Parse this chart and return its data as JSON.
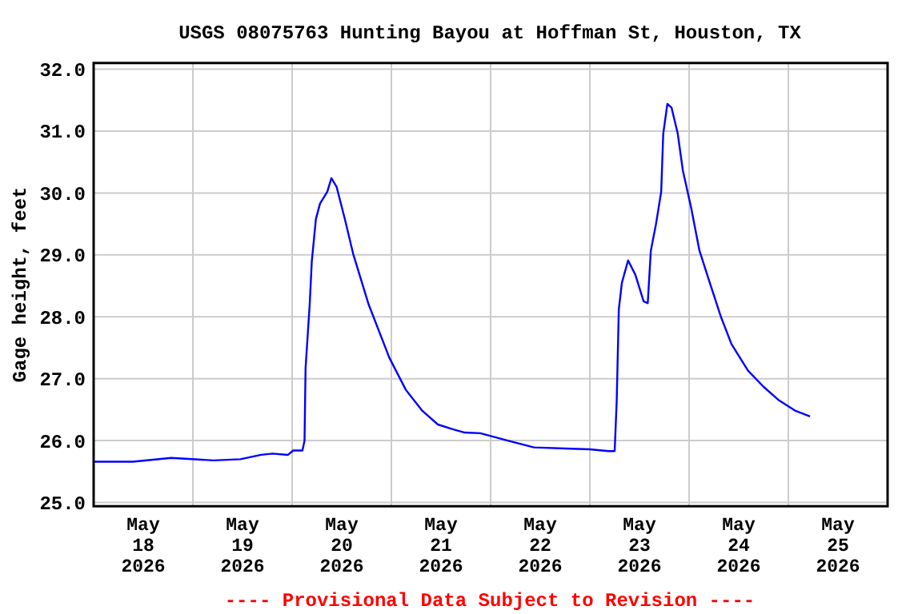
{
  "chart_data": {
    "type": "line",
    "title": "USGS 08075763 Hunting Bayou at Hoffman St, Houston, TX",
    "ylabel": "Gage height, feet",
    "annotations": [
      "---- Provisional Data Subject to Revision ----"
    ],
    "x": [
      "2026-05-18T00:00",
      "2026-05-18T09:30",
      "2026-05-18T18:45",
      "2026-05-19T05:00",
      "2026-05-19T11:30",
      "2026-05-19T16:30",
      "2026-05-19T19:15",
      "2026-05-19T23:00",
      "2026-05-20T00:15",
      "2026-05-20T02:30",
      "2026-05-20T03:00",
      "2026-05-20T03:15",
      "2026-05-20T04:15",
      "2026-05-20T04:45",
      "2026-05-20T05:45",
      "2026-05-20T06:45",
      "2026-05-20T08:30",
      "2026-05-20T09:30",
      "2026-05-20T10:45",
      "2026-05-20T12:45",
      "2026-05-20T14:45",
      "2026-05-20T18:30",
      "2026-05-20T23:30",
      "2026-05-21T03:30",
      "2026-05-21T07:30",
      "2026-05-21T11:15",
      "2026-05-21T15:00",
      "2026-05-21T17:45",
      "2026-05-21T21:30",
      "2026-05-22T05:15",
      "2026-05-22T10:30",
      "2026-05-22T19:30",
      "2026-05-23T00:00",
      "2026-05-23T04:30",
      "2026-05-23T06:00",
      "2026-05-23T06:30",
      "2026-05-23T07:00",
      "2026-05-23T07:45",
      "2026-05-23T09:15",
      "2026-05-23T11:00",
      "2026-05-23T13:00",
      "2026-05-23T14:00",
      "2026-05-23T14:45",
      "2026-05-23T16:00",
      "2026-05-23T17:15",
      "2026-05-23T17:45",
      "2026-05-23T18:45",
      "2026-05-23T19:45",
      "2026-05-23T21:15",
      "2026-05-23T22:30",
      "2026-05-24T00:30",
      "2026-05-24T02:30",
      "2026-05-24T05:00",
      "2026-05-24T07:45",
      "2026-05-24T10:15",
      "2026-05-24T14:15",
      "2026-05-24T18:00",
      "2026-05-24T21:45",
      "2026-05-25T01:45",
      "2026-05-25T05:15"
    ],
    "series": [
      {
        "color": "#0000ff",
        "values": [
          25.66,
          25.66,
          25.72,
          25.68,
          25.7,
          25.77,
          25.79,
          25.77,
          25.84,
          25.84,
          26.0,
          27.17,
          28.2,
          28.89,
          29.58,
          29.83,
          30.02,
          30.24,
          30.1,
          29.58,
          29.02,
          28.2,
          27.34,
          26.82,
          26.48,
          26.26,
          26.18,
          26.13,
          26.12,
          25.98,
          25.89,
          25.87,
          25.86,
          25.83,
          25.83,
          26.65,
          28.12,
          28.55,
          28.91,
          28.68,
          28.25,
          28.22,
          29.07,
          29.5,
          30.02,
          30.96,
          31.44,
          31.38,
          30.96,
          30.36,
          29.76,
          29.07,
          28.55,
          27.99,
          27.56,
          27.13,
          26.87,
          26.65,
          26.48,
          26.39
        ]
      }
    ],
    "xlim": [
      "2026-05-18T00:00",
      "2026-05-26T00:00"
    ],
    "xticks": [
      {
        "value": "2026-05-18T00:00",
        "label": null
      },
      {
        "value": "2026-05-19T00:00",
        "label": null
      },
      {
        "value": "2026-05-20T00:00",
        "label": null
      },
      {
        "value": "2026-05-21T00:00",
        "label": null
      },
      {
        "value": "2026-05-22T00:00",
        "label": null
      },
      {
        "value": "2026-05-23T00:00",
        "label": null
      },
      {
        "value": "2026-05-24T00:00",
        "label": null
      },
      {
        "value": "2026-05-25T00:00",
        "label": null
      },
      {
        "value": "2026-05-26T00:00",
        "label": null
      },
      {
        "value": "2026-05-18T12:00",
        "label": "May\n18\n2026"
      },
      {
        "value": "2026-05-19T12:00",
        "label": "May\n19\n2026"
      },
      {
        "value": "2026-05-20T12:00",
        "label": "May\n20\n2026"
      },
      {
        "value": "2026-05-21T12:00",
        "label": "May\n21\n2026"
      },
      {
        "value": "2026-05-22T12:00",
        "label": "May\n22\n2026"
      },
      {
        "value": "2026-05-23T12:00",
        "label": "May\n23\n2026"
      },
      {
        "value": "2026-05-24T12:00",
        "label": "May\n24\n2026"
      },
      {
        "value": "2026-05-25T12:00",
        "label": "May\n25\n2026"
      }
    ],
    "ylim": [
      24.94,
      32.1
    ],
    "yticks": [
      {
        "value": 25,
        "label": "25.0"
      },
      {
        "value": 26,
        "label": "26.0"
      },
      {
        "value": 27,
        "label": "27.0"
      },
      {
        "value": 28,
        "label": "28.0"
      },
      {
        "value": 29,
        "label": "29.0"
      },
      {
        "value": 30,
        "label": "30.0"
      },
      {
        "value": 31,
        "label": "31.0"
      },
      {
        "value": 32,
        "label": "32.0"
      }
    ],
    "grid": true,
    "marker": "none",
    "line_style": "solid"
  }
}
